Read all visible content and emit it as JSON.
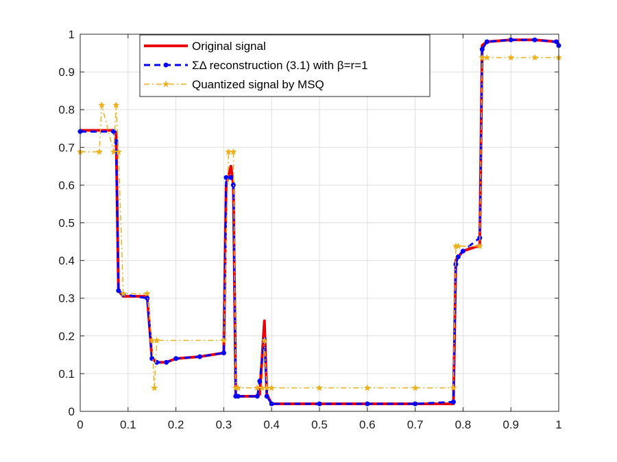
{
  "chart_data": {
    "type": "line",
    "title": "",
    "xlabel": "",
    "ylabel": "",
    "xlim": [
      0,
      1
    ],
    "ylim": [
      0,
      1
    ],
    "xticks": [
      0,
      0.1,
      0.2,
      0.3,
      0.4,
      0.5,
      0.6,
      0.7,
      0.8,
      0.9,
      1
    ],
    "yticks": [
      0,
      0.1,
      0.2,
      0.3,
      0.4,
      0.5,
      0.6,
      0.7,
      0.8,
      0.9,
      1
    ],
    "xtick_labels": [
      "0",
      "0.1",
      "0.2",
      "0.3",
      "0.4",
      "0.5",
      "0.6",
      "0.7",
      "0.8",
      "0.9",
      "1"
    ],
    "ytick_labels": [
      "0",
      "0.1",
      "0.2",
      "0.3",
      "0.4",
      "0.5",
      "0.6",
      "0.7",
      "0.8",
      "0.9",
      "1"
    ],
    "grid": true,
    "legend_position": "top-center",
    "series": [
      {
        "name": "Original signal",
        "color": "#e8000b",
        "style": "solid",
        "marker": "none",
        "x": [
          0,
          0.07,
          0.075,
          0.08,
          0.09,
          0.14,
          0.15,
          0.16,
          0.18,
          0.2,
          0.25,
          0.3,
          0.305,
          0.315,
          0.32,
          0.325,
          0.33,
          0.37,
          0.375,
          0.385,
          0.39,
          0.4,
          0.5,
          0.6,
          0.7,
          0.78,
          0.785,
          0.79,
          0.8,
          0.835,
          0.84,
          0.85,
          0.9,
          0.95,
          0.995,
          1
        ],
        "y": [
          0.745,
          0.745,
          0.74,
          0.32,
          0.305,
          0.305,
          0.14,
          0.13,
          0.13,
          0.14,
          0.145,
          0.155,
          0.6,
          0.65,
          0.6,
          0.04,
          0.04,
          0.04,
          0.045,
          0.24,
          0.045,
          0.02,
          0.02,
          0.02,
          0.02,
          0.02,
          0.4,
          0.41,
          0.425,
          0.44,
          0.97,
          0.98,
          0.985,
          0.985,
          0.98,
          0.975
        ]
      },
      {
        "name": "ΣΔ reconstruction (3.1) with β=r=1",
        "color": "#0000ff",
        "style": "dashed",
        "marker": "circle",
        "x": [
          0,
          0.07,
          0.075,
          0.08,
          0.09,
          0.14,
          0.15,
          0.16,
          0.18,
          0.2,
          0.25,
          0.3,
          0.305,
          0.315,
          0.32,
          0.325,
          0.33,
          0.37,
          0.375,
          0.385,
          0.39,
          0.4,
          0.5,
          0.6,
          0.7,
          0.78,
          0.785,
          0.79,
          0.8,
          0.835,
          0.84,
          0.85,
          0.9,
          0.95,
          0.995,
          1
        ],
        "y": [
          0.742,
          0.742,
          0.715,
          0.32,
          0.31,
          0.3,
          0.14,
          0.13,
          0.13,
          0.14,
          0.145,
          0.155,
          0.62,
          0.62,
          0.6,
          0.04,
          0.04,
          0.04,
          0.08,
          0.19,
          0.04,
          0.02,
          0.02,
          0.02,
          0.02,
          0.025,
          0.39,
          0.41,
          0.425,
          0.46,
          0.96,
          0.98,
          0.985,
          0.985,
          0.98,
          0.97
        ]
      },
      {
        "name": "Quantized signal by MSQ",
        "color": "#edb120",
        "style": "dashdot",
        "marker": "star",
        "x": [
          0,
          0.04,
          0.045,
          0.07,
          0.075,
          0.08,
          0.09,
          0.14,
          0.15,
          0.155,
          0.16,
          0.3,
          0.31,
          0.32,
          0.325,
          0.33,
          0.37,
          0.38,
          0.385,
          0.39,
          0.4,
          0.5,
          0.6,
          0.7,
          0.78,
          0.785,
          0.79,
          0.835,
          0.84,
          0.85,
          0.9,
          0.95,
          1
        ],
        "y": [
          0.688,
          0.688,
          0.812,
          0.688,
          0.812,
          0.688,
          0.312,
          0.312,
          0.188,
          0.062,
          0.188,
          0.188,
          0.688,
          0.688,
          0.062,
          0.062,
          0.062,
          0.062,
          0.188,
          0.062,
          0.062,
          0.062,
          0.062,
          0.062,
          0.062,
          0.438,
          0.438,
          0.438,
          0.938,
          0.938,
          0.938,
          0.938,
          0.938
        ]
      }
    ]
  }
}
